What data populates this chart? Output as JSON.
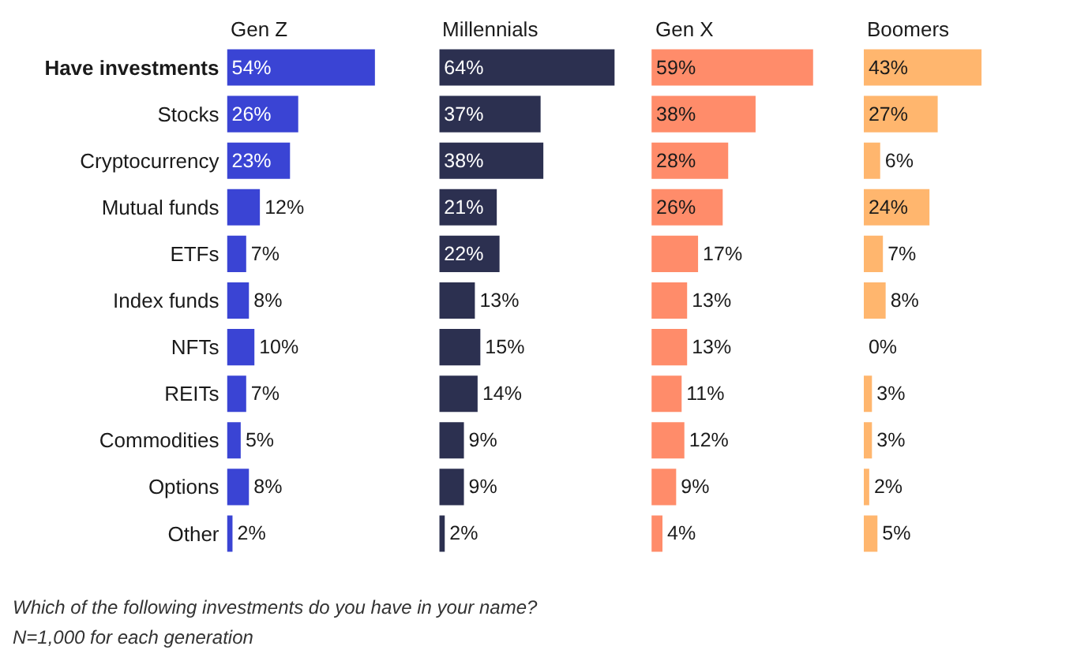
{
  "chart_data": [
    {
      "type": "bar",
      "orientation": "horizontal",
      "title": "Gen Z",
      "categories": [
        "Have investments",
        "Stocks",
        "Cryptocurrency",
        "Mutual funds",
        "ETFs",
        "Index funds",
        "NFTs",
        "REITs",
        "Commodities",
        "Options",
        "Other"
      ],
      "values": [
        54,
        26,
        23,
        12,
        7,
        8,
        10,
        7,
        5,
        8,
        2
      ],
      "value_labels": [
        "54%",
        "26%",
        "23%",
        "12%",
        "7%",
        "8%",
        "10%",
        "7%",
        "5%",
        "8%",
        "2%"
      ],
      "color": "#3a44d4",
      "tick_labels": "y",
      "annotations": [
        "Which of the following investments do you have in your name?",
        "N=1,000 for each generation"
      ]
    },
    {
      "type": "bar",
      "orientation": "horizontal",
      "title": "Millennials",
      "categories": [
        "Have investments",
        "Stocks",
        "Cryptocurrency",
        "Mutual funds",
        "ETFs",
        "Index funds",
        "NFTs",
        "REITs",
        "Commodities",
        "Options",
        "Other"
      ],
      "values": [
        64,
        37,
        38,
        21,
        22,
        13,
        15,
        14,
        9,
        9,
        2
      ],
      "value_labels": [
        "64%",
        "37%",
        "38%",
        "21%",
        "22%",
        "13%",
        "15%",
        "14%",
        "9%",
        "9%",
        "2%"
      ],
      "color": "#2c3050",
      "tick_labels": false
    },
    {
      "type": "bar",
      "orientation": "horizontal",
      "title": "Gen X",
      "categories": [
        "Have investments",
        "Stocks",
        "Cryptocurrency",
        "Mutual funds",
        "ETFs",
        "Index funds",
        "NFTs",
        "REITs",
        "Commodities",
        "Options",
        "Other"
      ],
      "values": [
        59,
        38,
        28,
        26,
        17,
        13,
        13,
        11,
        12,
        9,
        4
      ],
      "value_labels": [
        "59%",
        "38%",
        "28%",
        "26%",
        "17%",
        "13%",
        "13%",
        "11%",
        "12%",
        "9%",
        "4%"
      ],
      "color": "#ff8c6a",
      "tick_labels": false
    },
    {
      "type": "bar",
      "orientation": "horizontal",
      "title": "Boomers",
      "categories": [
        "Have investments",
        "Stocks",
        "Cryptocurrency",
        "Mutual funds",
        "ETFs",
        "Index funds",
        "NFTs",
        "REITs",
        "Commodities",
        "Options",
        "Other"
      ],
      "values": [
        43,
        27,
        6,
        24,
        7,
        8,
        0,
        3,
        3,
        2,
        5
      ],
      "value_labels": [
        "43%",
        "27%",
        "6%",
        "24%",
        "7%",
        "8%",
        "0%",
        "3%",
        "3%",
        "2%",
        "5%"
      ],
      "color": "#ffb66e",
      "tick_labels": false
    }
  ]
}
